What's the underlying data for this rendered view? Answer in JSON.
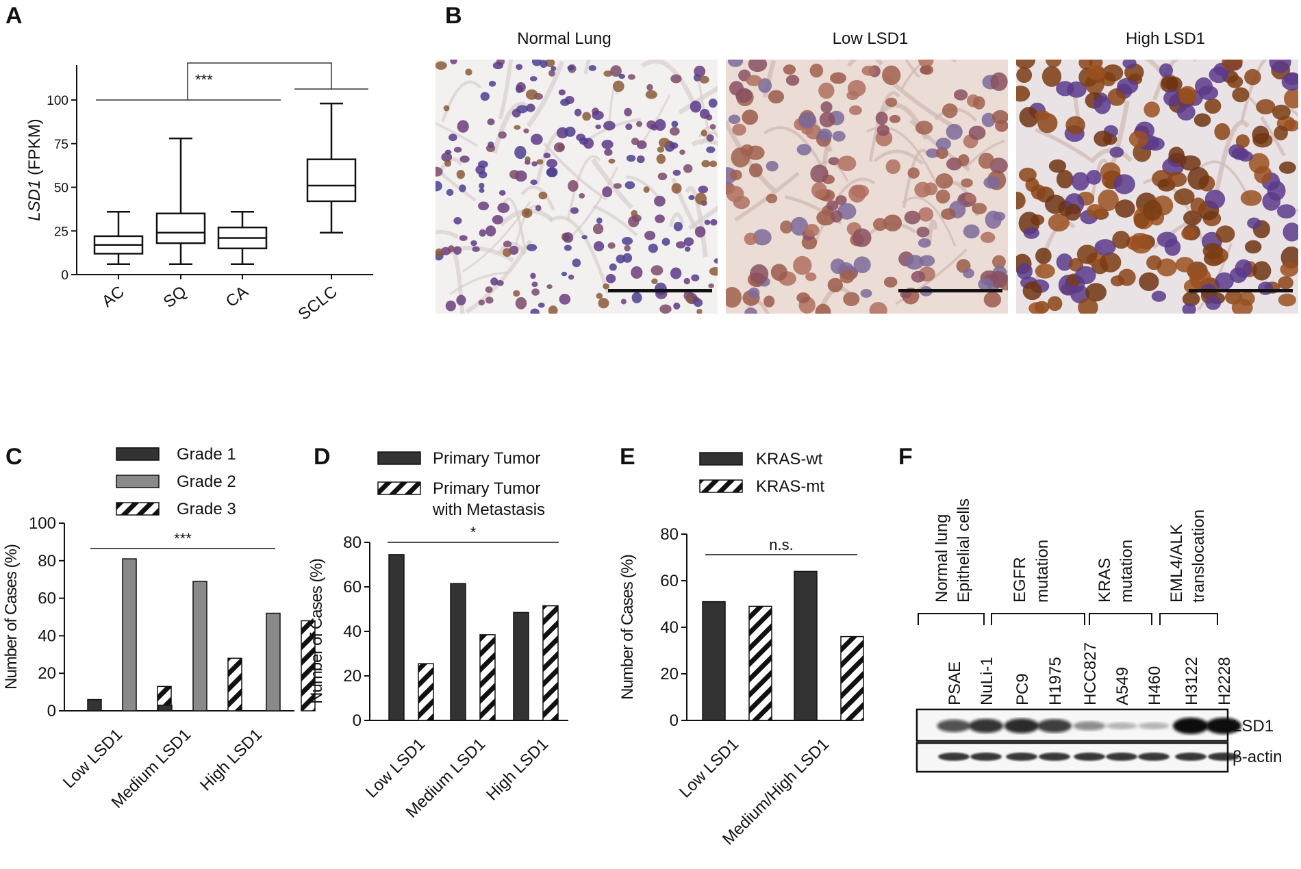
{
  "panels": {
    "a": "A",
    "b": "B",
    "c": "C",
    "d": "D",
    "e": "E",
    "f": "F"
  },
  "colors": {
    "dark": "#333333",
    "grey": "#8a8a8a",
    "hatch": "#111111"
  },
  "chart_data": [
    {
      "panel": "A",
      "type": "box",
      "ylabel_italic": "LSD1",
      "ylabel_rest": " (FPKM)",
      "categories": [
        "AC",
        "SQ",
        "CA",
        "SCLC"
      ],
      "boxes": [
        {
          "min": 6,
          "q1": 12,
          "median": 17,
          "q3": 22,
          "max": 36
        },
        {
          "min": 6,
          "q1": 18,
          "median": 24,
          "q3": 35,
          "max": 78
        },
        {
          "min": 6,
          "q1": 15,
          "median": 21,
          "q3": 27,
          "max": 36
        },
        {
          "min": 24,
          "q1": 42,
          "median": 51,
          "q3": 66,
          "max": 98
        }
      ],
      "yticks": [
        "0",
        "25",
        "50",
        "75",
        "100"
      ],
      "ylim": [
        0,
        120
      ],
      "significance": "***"
    },
    {
      "panel": "C",
      "type": "bar",
      "ylabel": "Number of Cases (%)",
      "categories": [
        "Low LSD1",
        "Medium LSD1",
        "High LSD1"
      ],
      "series": [
        {
          "name": "Grade 1",
          "style": "dark",
          "values": [
            6,
            3,
            0
          ]
        },
        {
          "name": "Grade 2",
          "style": "grey",
          "values": [
            81,
            69,
            52
          ]
        },
        {
          "name": "Grade 3",
          "style": "hatch",
          "values": [
            13,
            28,
            48
          ]
        }
      ],
      "yticks": [
        "0",
        "20",
        "40",
        "60",
        "80",
        "100"
      ],
      "ylim": [
        0,
        100
      ],
      "significance": "***",
      "legend": "top"
    },
    {
      "panel": "D",
      "type": "bar",
      "ylabel": "Number of Cases (%)",
      "categories": [
        "Low LSD1",
        "Medium LSD1",
        "High LSD1"
      ],
      "series": [
        {
          "name": "Primary Tumor",
          "style": "dark",
          "values": [
            74.5,
            61.5,
            48.5
          ]
        },
        {
          "name": [
            "Primary Tumor",
            "with Metastasis"
          ],
          "style": "hatch",
          "values": [
            25.5,
            38.5,
            51.5
          ]
        }
      ],
      "yticks": [
        "0",
        "20",
        "40",
        "60",
        "80"
      ],
      "ylim": [
        0,
        80
      ],
      "significance": "*",
      "legend": "top"
    },
    {
      "panel": "E",
      "type": "bar",
      "ylabel": "Number of Cases (%)",
      "categories": [
        "Low LSD1",
        "Medium/High LSD1"
      ],
      "series": [
        {
          "name": "KRAS-wt",
          "style": "dark",
          "values": [
            51,
            64
          ]
        },
        {
          "name": "KRAS-mt",
          "style": "hatch",
          "values": [
            49,
            36
          ]
        }
      ],
      "yticks": [
        "0",
        "20",
        "40",
        "60",
        "80"
      ],
      "ylim": [
        0,
        80
      ],
      "significance": "n.s.",
      "legend": "top"
    }
  ],
  "histology": {
    "titles": [
      "Normal Lung",
      "Low LSD1",
      "High LSD1"
    ]
  },
  "western_blot": {
    "groups": [
      {
        "lines": [
          "Normal lung",
          "Epithelial cells"
        ]
      },
      {
        "lines": [
          "EGFR",
          "mutation"
        ]
      },
      {
        "lines": [
          "KRAS",
          "mutation"
        ]
      },
      {
        "lines": [
          "EML4/ALK",
          "translocation"
        ]
      }
    ],
    "lanes": [
      "PSAE",
      "NuLi-1",
      "PC9",
      "H1975",
      "HCC827",
      "A549",
      "H460",
      "H3122",
      "H2228"
    ],
    "band_labels": [
      "LSD1",
      "β-actin"
    ],
    "lsd1_intensity": [
      0.65,
      0.8,
      0.85,
      0.75,
      0.35,
      0.15,
      0.15,
      1.0,
      1.0
    ],
    "actin_intensity": [
      0.85,
      0.85,
      0.85,
      0.85,
      0.85,
      0.85,
      0.85,
      0.85,
      0.85
    ]
  }
}
